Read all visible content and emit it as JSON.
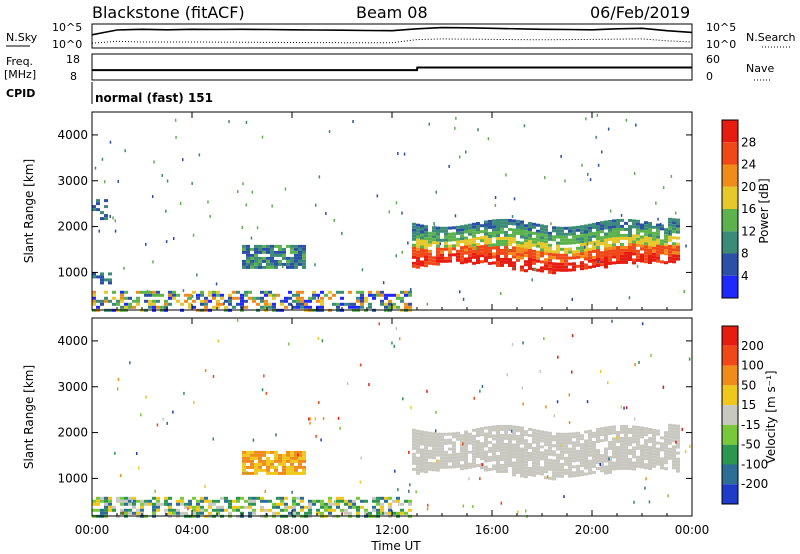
{
  "header": {
    "station": "Blackstone (fitACF)",
    "beam": "Beam 08",
    "date": "06/Feb/2019"
  },
  "chart_data": [
    {
      "type": "line",
      "panel": "noise",
      "ylabel_left": "N.Sky",
      "ylabel_right": "N.Search",
      "left_ticks": [
        "10^5",
        "10^0"
      ],
      "right_ticks": [
        "10^5",
        "10^0"
      ],
      "series": [
        {
          "name": "N.Sky",
          "style": "solid",
          "x": [
            0,
            0.5,
            1,
            2,
            3,
            4,
            5,
            6,
            7,
            8,
            9,
            10,
            11,
            12,
            13,
            14,
            15,
            16,
            17,
            18,
            19,
            20,
            21,
            22,
            23,
            24
          ],
          "y_frac": [
            0.55,
            0.65,
            0.75,
            0.78,
            0.76,
            0.78,
            0.77,
            0.78,
            0.77,
            0.76,
            0.75,
            0.74,
            0.73,
            0.72,
            0.8,
            0.85,
            0.84,
            0.82,
            0.8,
            0.78,
            0.77,
            0.76,
            0.8,
            0.82,
            0.72,
            0.65
          ]
        },
        {
          "name": "N.Search",
          "style": "dotted",
          "x": [
            0,
            1,
            2,
            4,
            6,
            8,
            10,
            12,
            13,
            14,
            16,
            18,
            20,
            22,
            23,
            24
          ],
          "y_frac": [
            0.2,
            0.28,
            0.25,
            0.25,
            0.24,
            0.23,
            0.22,
            0.22,
            0.35,
            0.38,
            0.36,
            0.34,
            0.36,
            0.38,
            0.3,
            0.25
          ]
        }
      ]
    },
    {
      "type": "line",
      "panel": "frequency",
      "ylabel_left": "Freq.",
      "ylabel_left_unit": "[MHz]",
      "ylabel_right": "Nave",
      "left_ticks": [
        "18",
        "8"
      ],
      "right_ticks": [
        "60",
        "0"
      ],
      "series": [
        {
          "name": "Freq.",
          "style": "solid",
          "x": [
            0,
            13,
            13.01,
            24
          ],
          "y_frac": [
            0.38,
            0.38,
            0.48,
            0.48
          ]
        },
        {
          "name": "Nave",
          "style": "dotted",
          "x": [
            0,
            24
          ],
          "y_frac": [
            0.0,
            0.0
          ]
        }
      ]
    },
    {
      "type": "heatmap",
      "panel": "power",
      "ylabel": "Slant Range [km]",
      "yticks": [
        1000,
        2000,
        3000,
        4000
      ],
      "ylim": [
        180,
        4500
      ],
      "xlim": [
        0,
        24
      ],
      "colorbar_label": "Power [dB]",
      "colorbar_ticks": [
        4,
        8,
        12,
        16,
        20,
        24,
        28
      ],
      "colorbar_colors": [
        "#1e28ff",
        "#2c50a8",
        "#3c8a78",
        "#5cb24c",
        "#e6c82c",
        "#f08c1c",
        "#f04818",
        "#e61c10"
      ],
      "regions": [
        {
          "x": [
            12.8,
            23.5
          ],
          "range": [
            1000,
            2300
          ],
          "level": "strong"
        },
        {
          "x": [
            6.0,
            8.5
          ],
          "range": [
            1100,
            1600
          ],
          "level": "medium"
        },
        {
          "x": [
            0.0,
            12.8
          ],
          "range": [
            200,
            600
          ],
          "level": "mixed"
        },
        {
          "x": [
            0.0,
            0.6
          ],
          "range": [
            2100,
            2600
          ],
          "level": "weak"
        },
        {
          "x": [
            0.0,
            0.8
          ],
          "range": [
            700,
            1000
          ],
          "level": "weak"
        }
      ]
    },
    {
      "type": "heatmap",
      "panel": "velocity",
      "ylabel": "Slant Range [km]",
      "yticks": [
        1000,
        2000,
        3000,
        4000
      ],
      "ylim": [
        180,
        4500
      ],
      "xlim": [
        0,
        24
      ],
      "colorbar_label": "Velocity [m s⁻¹]",
      "colorbar_ticks": [
        200,
        100,
        50,
        15,
        -15,
        -50,
        -100,
        -200
      ],
      "colorbar_colors": [
        "#1e3cc8",
        "#2c6e96",
        "#2c9650",
        "#78c83c",
        "#c8c8c0",
        "#f0c81c",
        "#f08c1c",
        "#f04818",
        "#e61c10"
      ],
      "regions": [
        {
          "x": [
            12.8,
            23.5
          ],
          "range": [
            1000,
            2300
          ],
          "level": "ground"
        },
        {
          "x": [
            6.0,
            8.5
          ],
          "range": [
            1100,
            1600
          ],
          "level": "negative"
        },
        {
          "x": [
            0.0,
            12.8
          ],
          "range": [
            200,
            600
          ],
          "level": "positive"
        }
      ]
    }
  ],
  "cpid": {
    "label": "CPID",
    "text": "normal (fast) 151"
  },
  "x_axis": {
    "ticks": [
      "00:00",
      "04:00",
      "08:00",
      "12:00",
      "16:00",
      "20:00",
      "00:00"
    ],
    "label": "Time UT"
  }
}
